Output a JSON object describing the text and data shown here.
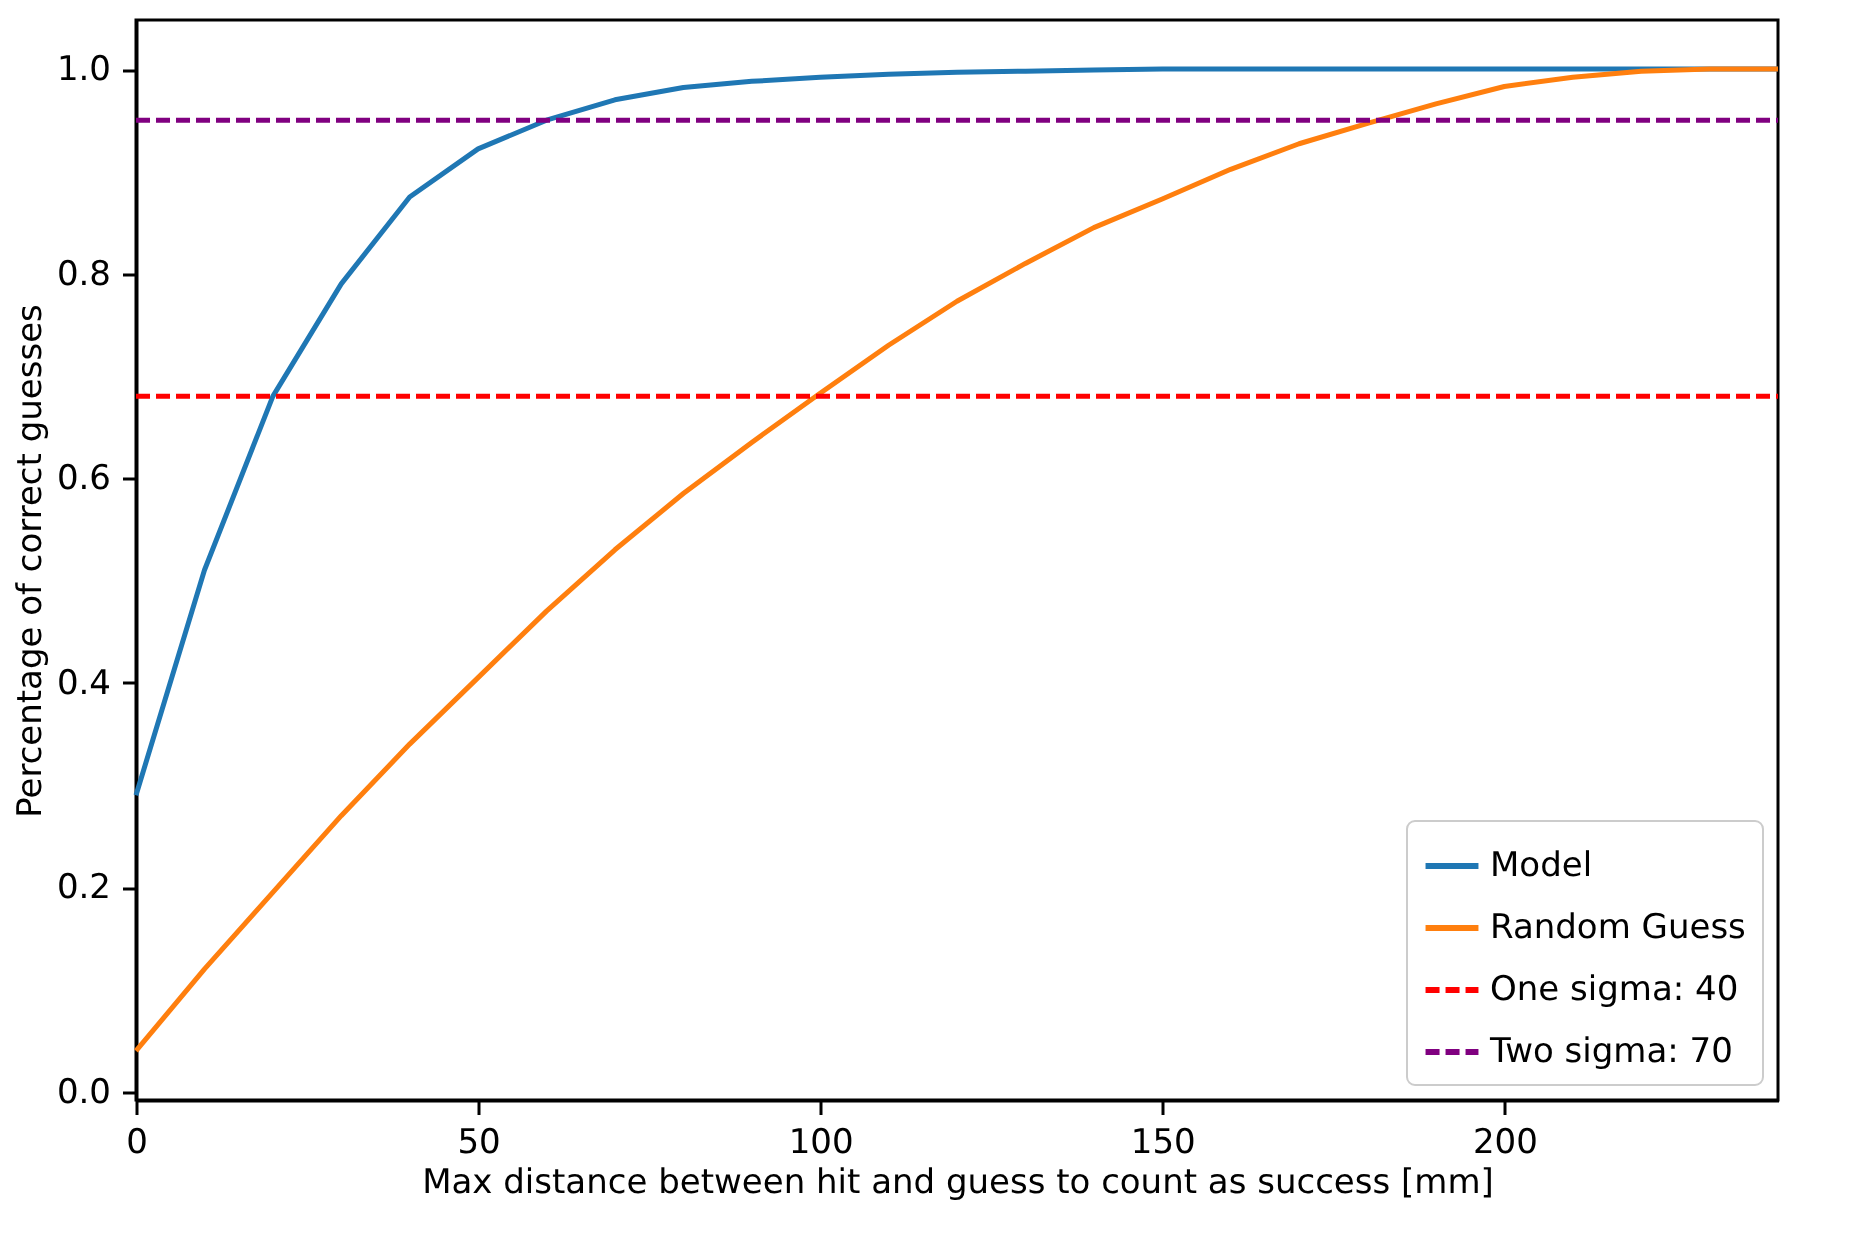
{
  "chart_data": {
    "type": "line",
    "xlabel": "Max distance between hit and guess to count as success [mm]",
    "ylabel": "Percentage of correct guesses",
    "x": [
      0,
      10,
      20,
      30,
      40,
      50,
      60,
      70,
      80,
      90,
      100,
      110,
      120,
      130,
      140,
      150,
      160,
      170,
      180,
      190,
      200,
      210,
      220,
      230,
      240
    ],
    "series": [
      {
        "name": "Model",
        "color": "#1f77b4",
        "values": [
          0.29,
          0.51,
          0.68,
          0.79,
          0.875,
          0.922,
          0.95,
          0.97,
          0.982,
          0.988,
          0.992,
          0.995,
          0.997,
          0.998,
          0.999,
          1.0,
          1.0,
          1.0,
          1.0,
          1.0,
          1.0,
          1.0,
          1.0,
          1.0,
          1.0
        ]
      },
      {
        "name": "Random Guess",
        "color": "#ff7f0e",
        "values": [
          0.04,
          0.12,
          0.195,
          0.27,
          0.34,
          0.405,
          0.47,
          0.53,
          0.585,
          0.635,
          0.683,
          0.73,
          0.773,
          0.81,
          0.845,
          0.873,
          0.902,
          0.927,
          0.947,
          0.966,
          0.983,
          0.992,
          0.998,
          1.0,
          1.0
        ]
      },
      {
        "name": "One sigma: 40",
        "color": "#ff0000",
        "line_style": "dashed",
        "values": [
          0.68,
          0.68,
          0.68,
          0.68,
          0.68,
          0.68,
          0.68,
          0.68,
          0.68,
          0.68,
          0.68,
          0.68,
          0.68,
          0.68,
          0.68,
          0.68,
          0.68,
          0.68,
          0.68,
          0.68,
          0.68,
          0.68,
          0.68,
          0.68,
          0.68
        ]
      },
      {
        "name": "Two sigma: 70",
        "color": "#800080",
        "line_style": "dashed",
        "values": [
          0.95,
          0.95,
          0.95,
          0.95,
          0.95,
          0.95,
          0.95,
          0.95,
          0.95,
          0.95,
          0.95,
          0.95,
          0.95,
          0.95,
          0.95,
          0.95,
          0.95,
          0.95,
          0.95,
          0.95,
          0.95,
          0.95,
          0.95,
          0.95,
          0.95
        ]
      }
    ],
    "xlim": [
      0,
      240
    ],
    "ylim": [
      -0.008,
      1.048
    ],
    "xticks": [
      0,
      50,
      100,
      150,
      200
    ],
    "yticks": [
      {
        "value": 0,
        "label": "0.0"
      },
      {
        "value": 0.2,
        "label": "0.2"
      },
      {
        "value": 0.4,
        "label": "0.4"
      },
      {
        "value": 0.6,
        "label": "0.6"
      },
      {
        "value": 0.8,
        "label": "0.8"
      },
      {
        "value": 1,
        "label": "1.0"
      }
    ],
    "grid": false,
    "legend": "bottom right",
    "line_style": "solid",
    "marker": "none"
  }
}
